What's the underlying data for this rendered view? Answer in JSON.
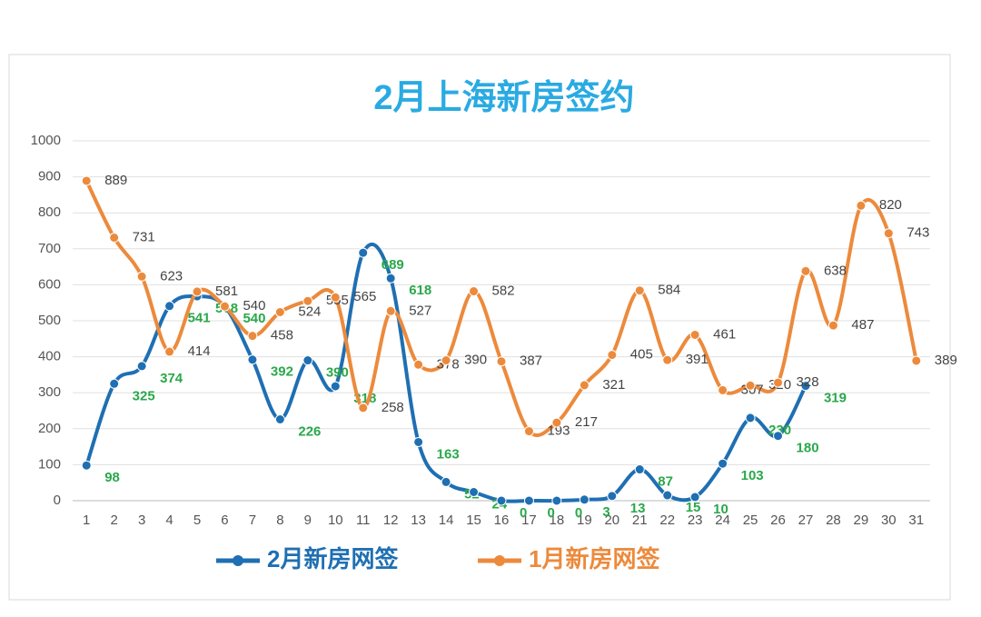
{
  "chart_data": {
    "type": "line",
    "title": "2月上海新房签约",
    "categories": [
      "1",
      "2",
      "3",
      "4",
      "5",
      "6",
      "7",
      "8",
      "9",
      "10",
      "11",
      "12",
      "13",
      "14",
      "15",
      "16",
      "17",
      "18",
      "19",
      "20",
      "21",
      "22",
      "23",
      "24",
      "25",
      "26",
      "27",
      "28",
      "29",
      "30",
      "31"
    ],
    "series": [
      {
        "name": "2月新房网签",
        "color": "#1f6fb2",
        "label_color": "#2aa84a",
        "values": [
          98,
          325,
          374,
          541,
          568,
          540,
          392,
          226,
          390,
          318,
          689,
          618,
          163,
          52,
          24,
          0,
          0,
          0,
          3,
          13,
          87,
          15,
          10,
          103,
          230,
          180,
          319,
          null,
          null,
          null,
          null
        ]
      },
      {
        "name": "1月新房网签",
        "color": "#ec8a3c",
        "label_color": "#444444",
        "values": [
          889,
          731,
          623,
          414,
          581,
          540,
          458,
          524,
          555,
          565,
          258,
          527,
          378,
          390,
          582,
          387,
          193,
          217,
          321,
          405,
          584,
          391,
          461,
          307,
          320,
          328,
          638,
          487,
          820,
          743,
          389
        ]
      }
    ],
    "ylim": [
      0,
      1000
    ],
    "yticks": [
      0,
      100,
      200,
      300,
      400,
      500,
      600,
      700,
      800,
      900,
      1000
    ],
    "grid": true,
    "legend": "bottom"
  }
}
